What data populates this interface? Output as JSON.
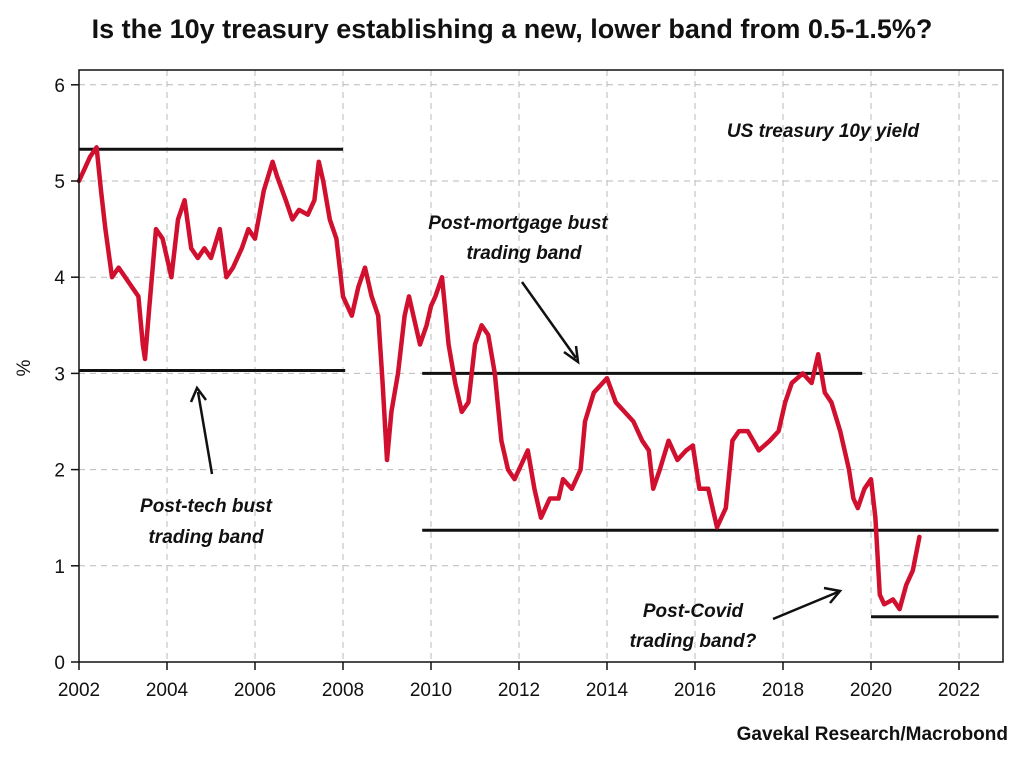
{
  "chart_data": {
    "type": "line",
    "title": "Is the 10y treasury establishing a new, lower band from 0.5-1.5%?",
    "source": "Gavekal Research/Macrobond",
    "ylabel": "%",
    "xlabel": "",
    "xlim": [
      2002,
      2023
    ],
    "ylim": [
      0,
      6.2
    ],
    "x_ticks": [
      "2002",
      "2004",
      "2006",
      "2008",
      "2010",
      "2012",
      "2014",
      "2016",
      "2018",
      "2020",
      "2022"
    ],
    "y_ticks": [
      "0",
      "1",
      "2",
      "3",
      "4",
      "5",
      "6"
    ],
    "grid": true,
    "legend_position": "top-right",
    "series_color": "#d0102e",
    "series": [
      {
        "name": "US treasury 10y yield",
        "points": [
          [
            2002.0,
            5.0
          ],
          [
            2002.1,
            5.1
          ],
          [
            2002.25,
            5.25
          ],
          [
            2002.4,
            5.35
          ],
          [
            2002.5,
            4.9
          ],
          [
            2002.6,
            4.5
          ],
          [
            2002.75,
            4.0
          ],
          [
            2002.9,
            4.1
          ],
          [
            2003.05,
            4.0
          ],
          [
            2003.2,
            3.9
          ],
          [
            2003.35,
            3.8
          ],
          [
            2003.45,
            3.3
          ],
          [
            2003.5,
            3.15
          ],
          [
            2003.6,
            3.7
          ],
          [
            2003.75,
            4.5
          ],
          [
            2003.9,
            4.4
          ],
          [
            2004.0,
            4.2
          ],
          [
            2004.1,
            4.0
          ],
          [
            2004.25,
            4.6
          ],
          [
            2004.4,
            4.8
          ],
          [
            2004.55,
            4.3
          ],
          [
            2004.7,
            4.2
          ],
          [
            2004.85,
            4.3
          ],
          [
            2005.0,
            4.2
          ],
          [
            2005.2,
            4.5
          ],
          [
            2005.35,
            4.0
          ],
          [
            2005.5,
            4.1
          ],
          [
            2005.7,
            4.3
          ],
          [
            2005.85,
            4.5
          ],
          [
            2006.0,
            4.4
          ],
          [
            2006.2,
            4.9
          ],
          [
            2006.4,
            5.2
          ],
          [
            2006.5,
            5.05
          ],
          [
            2006.7,
            4.8
          ],
          [
            2006.85,
            4.6
          ],
          [
            2007.0,
            4.7
          ],
          [
            2007.2,
            4.65
          ],
          [
            2007.35,
            4.8
          ],
          [
            2007.45,
            5.2
          ],
          [
            2007.55,
            5.0
          ],
          [
            2007.7,
            4.6
          ],
          [
            2007.85,
            4.4
          ],
          [
            2008.0,
            3.8
          ],
          [
            2008.2,
            3.6
          ],
          [
            2008.35,
            3.9
          ],
          [
            2008.5,
            4.1
          ],
          [
            2008.65,
            3.8
          ],
          [
            2008.8,
            3.6
          ],
          [
            2008.9,
            2.9
          ],
          [
            2009.0,
            2.1
          ],
          [
            2009.1,
            2.6
          ],
          [
            2009.25,
            3.0
          ],
          [
            2009.4,
            3.6
          ],
          [
            2009.5,
            3.8
          ],
          [
            2009.6,
            3.6
          ],
          [
            2009.75,
            3.3
          ],
          [
            2009.9,
            3.5
          ],
          [
            2010.0,
            3.7
          ],
          [
            2010.1,
            3.8
          ],
          [
            2010.25,
            4.0
          ],
          [
            2010.4,
            3.3
          ],
          [
            2010.55,
            2.9
          ],
          [
            2010.7,
            2.6
          ],
          [
            2010.85,
            2.7
          ],
          [
            2011.0,
            3.3
          ],
          [
            2011.15,
            3.5
          ],
          [
            2011.3,
            3.4
          ],
          [
            2011.45,
            3.0
          ],
          [
            2011.6,
            2.3
          ],
          [
            2011.75,
            2.0
          ],
          [
            2011.9,
            1.9
          ],
          [
            2012.0,
            2.0
          ],
          [
            2012.2,
            2.2
          ],
          [
            2012.35,
            1.8
          ],
          [
            2012.5,
            1.5
          ],
          [
            2012.7,
            1.7
          ],
          [
            2012.9,
            1.7
          ],
          [
            2013.0,
            1.9
          ],
          [
            2013.2,
            1.8
          ],
          [
            2013.4,
            2.0
          ],
          [
            2013.5,
            2.5
          ],
          [
            2013.7,
            2.8
          ],
          [
            2013.9,
            2.9
          ],
          [
            2014.0,
            2.95
          ],
          [
            2014.2,
            2.7
          ],
          [
            2014.4,
            2.6
          ],
          [
            2014.6,
            2.5
          ],
          [
            2014.8,
            2.3
          ],
          [
            2014.95,
            2.2
          ],
          [
            2015.05,
            1.8
          ],
          [
            2015.2,
            2.0
          ],
          [
            2015.4,
            2.3
          ],
          [
            2015.6,
            2.1
          ],
          [
            2015.8,
            2.2
          ],
          [
            2015.95,
            2.25
          ],
          [
            2016.1,
            1.8
          ],
          [
            2016.3,
            1.8
          ],
          [
            2016.5,
            1.4
          ],
          [
            2016.7,
            1.6
          ],
          [
            2016.85,
            2.3
          ],
          [
            2017.0,
            2.4
          ],
          [
            2017.2,
            2.4
          ],
          [
            2017.45,
            2.2
          ],
          [
            2017.7,
            2.3
          ],
          [
            2017.9,
            2.4
          ],
          [
            2018.05,
            2.7
          ],
          [
            2018.2,
            2.9
          ],
          [
            2018.45,
            3.0
          ],
          [
            2018.65,
            2.9
          ],
          [
            2018.8,
            3.2
          ],
          [
            2018.95,
            2.8
          ],
          [
            2019.1,
            2.7
          ],
          [
            2019.3,
            2.4
          ],
          [
            2019.5,
            2.0
          ],
          [
            2019.6,
            1.7
          ],
          [
            2019.7,
            1.6
          ],
          [
            2019.85,
            1.8
          ],
          [
            2020.0,
            1.9
          ],
          [
            2020.1,
            1.5
          ],
          [
            2020.2,
            0.7
          ],
          [
            2020.3,
            0.6
          ],
          [
            2020.5,
            0.65
          ],
          [
            2020.65,
            0.55
          ],
          [
            2020.8,
            0.8
          ],
          [
            2020.95,
            0.95
          ],
          [
            2021.1,
            1.3
          ]
        ]
      }
    ],
    "bands": [
      {
        "x0": 2002.0,
        "x1": 2008.0,
        "y": 5.33
      },
      {
        "x0": 2002.0,
        "x1": 2008.05,
        "y": 3.03
      },
      {
        "x0": 2009.8,
        "x1": 2019.8,
        "y": 3.0
      },
      {
        "x0": 2009.8,
        "x1": 2022.9,
        "y": 1.37
      },
      {
        "x0": 2020.0,
        "x1": 2022.9,
        "y": 0.47
      }
    ],
    "annotations": [
      {
        "id": "post-tech",
        "lines": [
          "Post-tech bust",
          "trading band"
        ]
      },
      {
        "id": "post-mortgage",
        "lines": [
          "Post-mortgage bust",
          "trading band"
        ]
      },
      {
        "id": "post-covid",
        "lines": [
          "Post-Covid",
          "trading band?"
        ]
      },
      {
        "id": "series-label",
        "lines": [
          "US treasury 10y yield"
        ]
      }
    ]
  }
}
